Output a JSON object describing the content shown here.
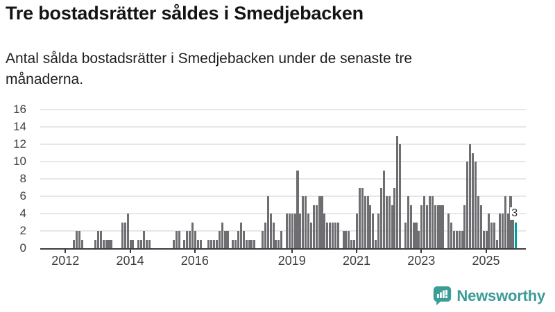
{
  "header": {
    "title": "Tre bostadsrätter såldes i Smedjebacken",
    "subtitle": "Antal sålda bostadsrätter i Smedjebacken under de senaste tre månaderna."
  },
  "chart_data": {
    "type": "bar",
    "title": "Tre bostadsrätter såldes i Smedjebacken",
    "frequency": "monthly",
    "x_start": "2012-01",
    "x_end": "2025-12",
    "values": [
      0,
      0,
      0,
      1,
      2,
      2,
      1,
      0,
      0,
      0,
      0,
      1,
      2,
      2,
      1,
      1,
      1,
      1,
      0,
      0,
      0,
      3,
      3,
      4,
      1,
      1,
      0,
      1,
      1,
      2,
      1,
      1,
      0,
      0,
      0,
      0,
      0,
      0,
      0,
      0,
      1,
      2,
      2,
      0,
      1,
      2,
      2,
      3,
      2,
      1,
      1,
      0,
      0,
      1,
      1,
      1,
      1,
      2,
      3,
      2,
      2,
      0,
      1,
      1,
      2,
      3,
      2,
      1,
      1,
      1,
      1,
      0,
      0,
      2,
      3,
      6,
      4,
      3,
      1,
      1,
      2,
      0,
      4,
      4,
      4,
      4,
      9,
      4,
      6,
      6,
      4,
      3,
      5,
      5,
      6,
      6,
      4,
      3,
      3,
      3,
      3,
      3,
      0,
      2,
      2,
      2,
      1,
      1,
      4,
      7,
      7,
      6,
      6,
      5,
      4,
      1,
      4,
      7,
      9,
      6,
      6,
      5,
      7,
      13,
      12,
      0,
      3,
      6,
      5,
      3,
      3,
      2,
      5,
      6,
      5,
      6,
      6,
      5,
      5,
      5,
      5,
      0,
      4,
      3,
      2,
      2,
      2,
      2,
      5,
      10,
      12,
      11,
      10,
      6,
      5,
      2,
      2,
      4,
      3,
      3,
      1,
      4,
      4,
      6,
      4,
      6,
      4,
      3
    ],
    "x_tick_labels": [
      "2012",
      "2014",
      "2016",
      "2019",
      "2021",
      "2023",
      "2025"
    ],
    "y_ticks": [
      0,
      2,
      4,
      6,
      8,
      10,
      12,
      14,
      16
    ],
    "ylim": [
      0,
      16
    ],
    "grid": true,
    "legend": false,
    "bar_color": "#6e6e72",
    "highlight": {
      "position": "last",
      "value": 3,
      "label": "3",
      "color": "#00a09a"
    }
  },
  "branding": {
    "logo_text": "Newsworthy",
    "logo_color": "#3c9c96",
    "icon": "bar-chart-speech-bubble-icon"
  },
  "colors": {
    "background": "#ffffff",
    "axis": "#3c3c40",
    "gridline": "#e7e7e7",
    "text": "#1f1f1f"
  }
}
